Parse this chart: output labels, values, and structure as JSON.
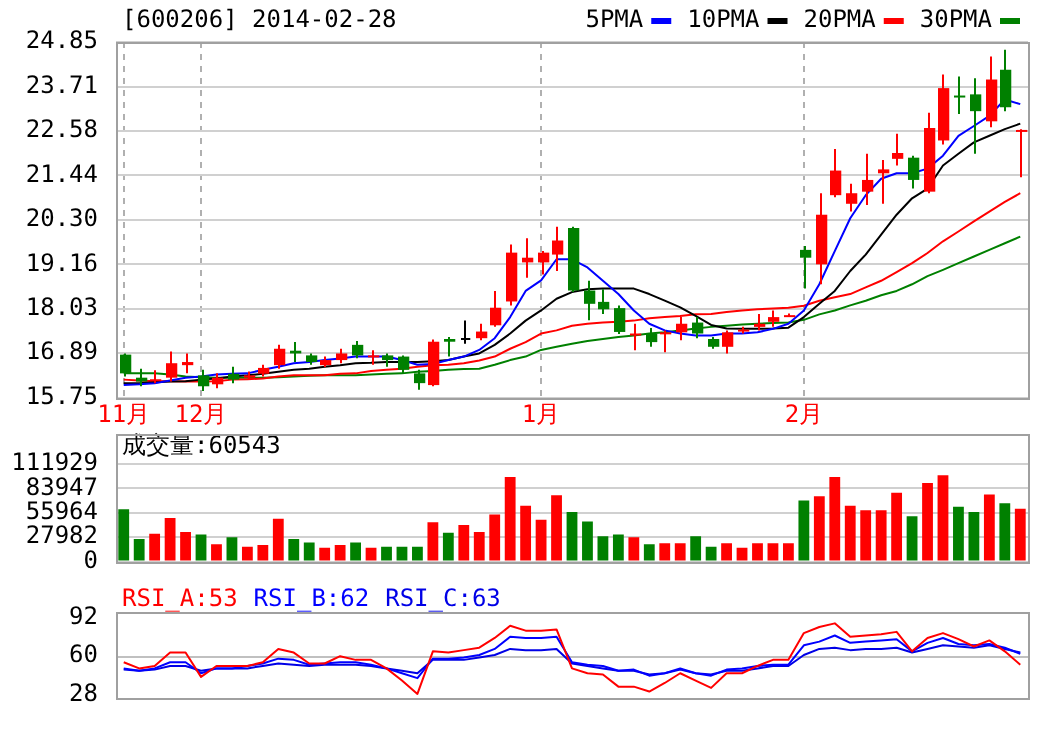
{
  "chart_data": [
    {
      "type": "candlestick",
      "title": "[600206] 2014-02-28",
      "categories": [
        "11月",
        null,
        null,
        null,
        null,
        "12月",
        null,
        null,
        null,
        null,
        null,
        null,
        null,
        null,
        null,
        null,
        null,
        null,
        null,
        null,
        null,
        null,
        null,
        null,
        null,
        null,
        null,
        "1月",
        null,
        null,
        null,
        null,
        null,
        null,
        null,
        null,
        null,
        null,
        null,
        null,
        null,
        null,
        null,
        null,
        "2月",
        null,
        null,
        null,
        null,
        null,
        null,
        null,
        null,
        null,
        null,
        null,
        null,
        null,
        null
      ],
      "ohlc": [
        [
          16.85,
          16.88,
          16.29,
          16.37
        ],
        [
          16.26,
          16.49,
          16.04,
          16.16
        ],
        [
          16.17,
          16.45,
          16.12,
          16.22
        ],
        [
          16.26,
          16.93,
          16.16,
          16.63
        ],
        [
          16.58,
          16.88,
          16.37,
          16.66
        ],
        [
          16.32,
          16.46,
          15.92,
          16.04
        ],
        [
          16.09,
          16.37,
          15.99,
          16.26
        ],
        [
          16.36,
          16.54,
          16.12,
          16.21
        ],
        [
          16.26,
          16.42,
          16.2,
          16.32
        ],
        [
          16.36,
          16.59,
          16.29,
          16.51
        ],
        [
          16.58,
          17.1,
          16.49,
          17.0
        ],
        [
          16.95,
          17.17,
          16.66,
          16.88
        ],
        [
          16.83,
          16.88,
          16.59,
          16.66
        ],
        [
          16.58,
          16.8,
          16.53,
          16.71
        ],
        [
          16.71,
          17.0,
          16.63,
          16.88
        ],
        [
          17.1,
          17.2,
          16.76,
          16.83
        ],
        [
          16.78,
          16.96,
          16.59,
          16.83
        ],
        [
          16.83,
          16.88,
          16.54,
          16.71
        ],
        [
          16.8,
          16.83,
          16.37,
          16.46
        ],
        [
          16.37,
          16.46,
          15.95,
          16.12
        ],
        [
          16.07,
          17.24,
          16.04,
          17.18
        ],
        [
          17.25,
          17.3,
          16.8,
          17.18
        ],
        [
          17.25,
          17.72,
          17.13,
          17.25
        ],
        [
          17.27,
          17.64,
          17.22,
          17.44
        ],
        [
          17.6,
          18.48,
          17.56,
          18.05
        ],
        [
          18.21,
          19.67,
          18.11,
          19.46
        ],
        [
          19.21,
          19.83,
          18.82,
          19.33
        ],
        [
          19.21,
          19.5,
          18.9,
          19.46
        ],
        [
          19.41,
          20.12,
          18.99,
          19.77
        ],
        [
          20.09,
          20.12,
          18.45,
          18.49
        ],
        [
          18.49,
          18.74,
          17.73,
          18.15
        ],
        [
          18.2,
          18.52,
          17.89,
          18.01
        ],
        [
          18.04,
          18.11,
          17.38,
          17.43
        ],
        [
          17.37,
          17.64,
          16.96,
          17.39
        ],
        [
          17.38,
          17.53,
          17.05,
          17.17
        ],
        [
          17.37,
          17.47,
          16.91,
          17.42
        ],
        [
          17.42,
          17.81,
          17.22,
          17.64
        ],
        [
          17.67,
          17.81,
          17.27,
          17.39
        ],
        [
          17.25,
          17.3,
          17.0,
          17.05
        ],
        [
          17.05,
          17.47,
          16.88,
          17.42
        ],
        [
          17.47,
          17.56,
          17.39,
          17.49
        ],
        [
          17.56,
          17.89,
          17.47,
          17.64
        ],
        [
          17.69,
          17.98,
          17.56,
          17.81
        ],
        [
          17.85,
          17.9,
          17.81,
          17.86
        ],
        [
          19.53,
          19.63,
          18.54,
          19.33
        ],
        [
          19.16,
          20.98,
          18.65,
          20.43
        ],
        [
          20.93,
          22.11,
          20.88,
          21.56
        ],
        [
          20.71,
          21.22,
          20.51,
          20.98
        ],
        [
          21.02,
          21.99,
          20.68,
          21.32
        ],
        [
          21.49,
          21.83,
          20.71,
          21.59
        ],
        [
          21.86,
          22.5,
          21.69,
          22.01
        ],
        [
          21.89,
          21.94,
          21.1,
          21.32
        ],
        [
          21.02,
          23.04,
          20.98,
          22.65
        ],
        [
          22.33,
          24.02,
          22.23,
          23.67
        ],
        [
          23.48,
          23.97,
          23.01,
          23.44
        ],
        [
          23.51,
          23.92,
          21.99,
          23.08
        ],
        [
          22.82,
          24.48,
          22.67,
          23.89
        ],
        [
          24.14,
          24.65,
          23.08,
          23.18
        ],
        [
          22.58,
          22.62,
          21.39,
          22.6
        ]
      ],
      "colors": [
        "#008000",
        "#008000",
        "#ff0000",
        "#ff0000",
        "#ff0000",
        "#008000",
        "#ff0000",
        "#008000",
        "#ff0000",
        "#ff0000",
        "#ff0000",
        "#008000",
        "#008000",
        "#ff0000",
        "#ff0000",
        "#008000",
        "#ff0000",
        "#008000",
        "#008000",
        "#008000",
        "#ff0000",
        "#008000",
        "#000000",
        "#ff0000",
        "#ff0000",
        "#ff0000",
        "#ff0000",
        "#ff0000",
        "#ff0000",
        "#008000",
        "#008000",
        "#008000",
        "#008000",
        "#ff0000",
        "#008000",
        "#ff0000",
        "#ff0000",
        "#008000",
        "#008000",
        "#ff0000",
        "#ff0000",
        "#ff0000",
        "#ff0000",
        "#ff0000",
        "#008000",
        "#ff0000",
        "#ff0000",
        "#ff0000",
        "#ff0000",
        "#ff0000",
        "#ff0000",
        "#008000",
        "#ff0000",
        "#ff0000",
        "#008000",
        "#008000",
        "#ff0000",
        "#008000",
        "#ff0000"
      ],
      "series": [
        {
          "name": "5PMA",
          "type": "line",
          "color": "#0000ff",
          "values": [
            16.07,
            16.09,
            16.12,
            16.19,
            16.26,
            16.29,
            16.34,
            16.36,
            16.37,
            16.46,
            16.54,
            16.63,
            16.66,
            16.71,
            16.75,
            16.8,
            16.8,
            16.8,
            16.71,
            16.59,
            16.61,
            16.71,
            16.8,
            16.97,
            17.27,
            17.81,
            18.48,
            18.75,
            19.29,
            19.29,
            19.08,
            18.74,
            18.4,
            17.98,
            17.64,
            17.47,
            17.39,
            17.34,
            17.34,
            17.39,
            17.39,
            17.42,
            17.51,
            17.64,
            17.98,
            18.65,
            19.5,
            20.34,
            20.93,
            21.35,
            21.49,
            21.49,
            21.61,
            21.94,
            22.45,
            22.7,
            22.96,
            23.38,
            23.26
          ]
        },
        {
          "name": "10PMA",
          "type": "line",
          "color": "#000000",
          "values": [
            16.12,
            16.12,
            16.14,
            16.16,
            16.17,
            16.21,
            16.24,
            16.29,
            16.32,
            16.36,
            16.41,
            16.46,
            16.49,
            16.54,
            16.58,
            16.63,
            16.64,
            16.66,
            16.66,
            16.66,
            16.68,
            16.71,
            16.8,
            16.88,
            17.1,
            17.39,
            17.72,
            17.98,
            18.28,
            18.45,
            18.52,
            18.54,
            18.54,
            18.54,
            18.4,
            18.23,
            18.06,
            17.84,
            17.61,
            17.52,
            17.51,
            17.51,
            17.52,
            17.54,
            17.81,
            18.15,
            18.48,
            18.99,
            19.41,
            19.92,
            20.43,
            20.85,
            21.1,
            21.69,
            21.99,
            22.28,
            22.45,
            22.62,
            22.76
          ]
        },
        {
          "name": "20PMA",
          "type": "line",
          "color": "#ff0000",
          "values": [
            16.21,
            16.19,
            16.17,
            16.17,
            16.16,
            16.16,
            16.17,
            16.21,
            16.22,
            16.24,
            16.29,
            16.32,
            16.32,
            16.32,
            16.36,
            16.37,
            16.43,
            16.46,
            16.49,
            16.54,
            16.58,
            16.59,
            16.63,
            16.7,
            16.8,
            17.0,
            17.17,
            17.39,
            17.47,
            17.59,
            17.64,
            17.67,
            17.69,
            17.72,
            17.78,
            17.81,
            17.84,
            17.88,
            17.89,
            17.94,
            17.98,
            18.01,
            18.03,
            18.05,
            18.1,
            18.23,
            18.32,
            18.4,
            18.57,
            18.74,
            18.96,
            19.19,
            19.45,
            19.75,
            20.0,
            20.26,
            20.51,
            20.76,
            20.98
          ]
        },
        {
          "name": "30PMA",
          "type": "line",
          "color": "#008000",
          "values": [
            16.37,
            16.37,
            16.37,
            16.34,
            16.29,
            16.27,
            16.26,
            16.26,
            16.26,
            16.26,
            16.27,
            16.29,
            16.31,
            16.32,
            16.32,
            16.32,
            16.34,
            16.36,
            16.37,
            16.41,
            16.43,
            16.46,
            16.48,
            16.49,
            16.59,
            16.71,
            16.8,
            16.97,
            17.05,
            17.13,
            17.2,
            17.25,
            17.3,
            17.34,
            17.39,
            17.42,
            17.47,
            17.52,
            17.56,
            17.59,
            17.62,
            17.64,
            17.66,
            17.67,
            17.74,
            17.88,
            17.98,
            18.11,
            18.23,
            18.37,
            18.48,
            18.65,
            18.86,
            19.02,
            19.19,
            19.36,
            19.53,
            19.7,
            19.87
          ]
        }
      ],
      "ylim": [
        15.75,
        24.85
      ],
      "yticks": [
        15.75,
        16.89,
        18.03,
        19.16,
        {
          "value": 20.3,
          "label": "20.30"
        },
        21.44,
        22.58,
        23.71,
        24.85
      ],
      "grid": true,
      "legend": "top right",
      "marker": "none"
    },
    {
      "type": "bar",
      "title": "成交量:60543",
      "categories": [
        null,
        null,
        null,
        null,
        null,
        null,
        null,
        null,
        null,
        null,
        null,
        null,
        null,
        null,
        null,
        null,
        null,
        null,
        null,
        null,
        null,
        null,
        null,
        null,
        null,
        null,
        null,
        null,
        null,
        null,
        null,
        null,
        null,
        null,
        null,
        null,
        null,
        null,
        null,
        null,
        null,
        null,
        null,
        null,
        null,
        null,
        null,
        null,
        null,
        null,
        null,
        null,
        null,
        null,
        null,
        null,
        null,
        null,
        null
      ],
      "values": [
        60000,
        26000,
        32000,
        50000,
        34000,
        31000,
        20000,
        28000,
        17000,
        19000,
        49000,
        26000,
        22000,
        16000,
        19000,
        22000,
        16000,
        17000,
        17000,
        17000,
        45000,
        33000,
        42000,
        34000,
        54000,
        97000,
        64000,
        48000,
        76000,
        57000,
        46000,
        29000,
        31000,
        28000,
        20000,
        21000,
        21000,
        29000,
        17000,
        21000,
        16000,
        21000,
        21000,
        21000,
        70000,
        75000,
        97000,
        64000,
        59000,
        59000,
        79000,
        52000,
        90000,
        99000,
        63000,
        57000,
        77000,
        67000,
        60543
      ],
      "colors": [
        "#008000",
        "#008000",
        "#ff0000",
        "#ff0000",
        "#ff0000",
        "#008000",
        "#ff0000",
        "#008000",
        "#ff0000",
        "#ff0000",
        "#ff0000",
        "#008000",
        "#008000",
        "#ff0000",
        "#ff0000",
        "#008000",
        "#ff0000",
        "#008000",
        "#008000",
        "#008000",
        "#ff0000",
        "#008000",
        "#ff0000",
        "#ff0000",
        "#ff0000",
        "#ff0000",
        "#ff0000",
        "#ff0000",
        "#ff0000",
        "#008000",
        "#008000",
        "#008000",
        "#008000",
        "#ff0000",
        "#008000",
        "#ff0000",
        "#ff0000",
        "#008000",
        "#008000",
        "#ff0000",
        "#ff0000",
        "#ff0000",
        "#ff0000",
        "#ff0000",
        "#008000",
        "#ff0000",
        "#ff0000",
        "#ff0000",
        "#ff0000",
        "#ff0000",
        "#ff0000",
        "#008000",
        "#ff0000",
        "#ff0000",
        "#008000",
        "#008000",
        "#ff0000",
        "#008000",
        "#ff0000"
      ],
      "ylim": [
        0,
        111929
      ],
      "yticks": [
        0,
        27982,
        55964,
        83947,
        111929
      ],
      "grid": "y",
      "tick_labels": "y"
    },
    {
      "type": "line",
      "categories": [
        null,
        null,
        null,
        null,
        null,
        null,
        null,
        null,
        null,
        null,
        null,
        null,
        null,
        null,
        null,
        null,
        null,
        null,
        null,
        null,
        null,
        null,
        null,
        null,
        null,
        null,
        null,
        null,
        null,
        null,
        null,
        null,
        null,
        null,
        null,
        null,
        null,
        null,
        null,
        null,
        null,
        null,
        null,
        null,
        null,
        null,
        null,
        null,
        null,
        null,
        null,
        null,
        null,
        null,
        null,
        null,
        null,
        null,
        null
      ],
      "series": [
        {
          "name": "RSI_A:53",
          "color": "#ff0000",
          "values": [
            55,
            50,
            52,
            63,
            63,
            43,
            52,
            52,
            52,
            55,
            66,
            63,
            54,
            54,
            60,
            57,
            57,
            50,
            40,
            29,
            64,
            63,
            65,
            67,
            75,
            85,
            81,
            81,
            82,
            50,
            46,
            45,
            35,
            35,
            31,
            38,
            46,
            40,
            34,
            46,
            46,
            52,
            57,
            57,
            79,
            84,
            87,
            76,
            77,
            78,
            80,
            64,
            75,
            79,
            74,
            68,
            73,
            64,
            53
          ]
        },
        {
          "name": "RSI_B:62",
          "color": "#0000ff",
          "values": [
            50,
            48,
            50,
            55,
            55,
            46,
            50,
            50,
            52,
            54,
            58,
            57,
            53,
            54,
            55,
            55,
            53,
            50,
            46,
            42,
            58,
            58,
            59,
            61,
            66,
            76,
            75,
            75,
            76,
            55,
            53,
            52,
            48,
            49,
            44,
            46,
            50,
            46,
            44,
            49,
            50,
            52,
            53,
            53,
            69,
            72,
            77,
            71,
            72,
            73,
            74,
            64,
            71,
            75,
            70,
            69,
            70,
            67,
            62
          ]
        },
        {
          "name": "RSI_C:63",
          "color": "#0000e6",
          "values": [
            49,
            48,
            49,
            52,
            52,
            48,
            50,
            50,
            50,
            52,
            54,
            53,
            52,
            53,
            53,
            53,
            52,
            50,
            48,
            46,
            57,
            57,
            57,
            59,
            61,
            66,
            65,
            65,
            66,
            54,
            52,
            50,
            48,
            48,
            45,
            46,
            49,
            46,
            45,
            48,
            48,
            50,
            52,
            52,
            61,
            66,
            67,
            65,
            66,
            66,
            67,
            63,
            66,
            69,
            68,
            67,
            69,
            66,
            63
          ]
        }
      ],
      "ylim": [
        26,
        96
      ],
      "yticks": [
        28,
        60,
        92
      ],
      "ref_lines": [
        {
          "axis": "y",
          "value": 60,
          "color": "#c0c0c0"
        }
      ],
      "legend": "top left",
      "tick_labels": "y",
      "marker": "none"
    }
  ]
}
